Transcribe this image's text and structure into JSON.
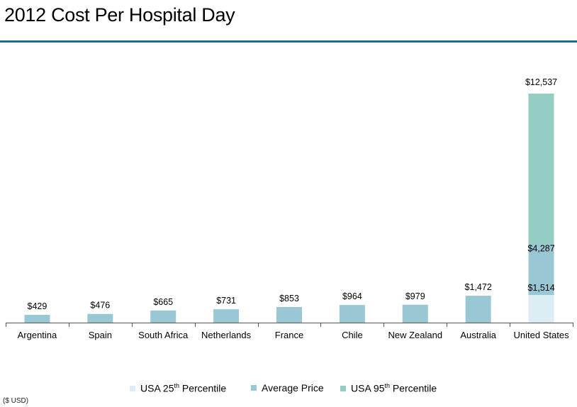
{
  "title": "2012 Cost Per Hospital Day",
  "note": "($ USD)",
  "colors": {
    "rule": "#1d6e8f",
    "average": "#99c7d4",
    "p25": "#dceef4",
    "p95": "#94cdc1",
    "axis": "#555555"
  },
  "legend": [
    {
      "pre": "USA 25",
      "sup": "th",
      "post": " Percentile",
      "color": "#dceef4"
    },
    {
      "pre": "Average Price",
      "sup": "",
      "post": "",
      "color": "#99c7d4"
    },
    {
      "pre": "USA  95",
      "sup": "th",
      "post": " Percentile",
      "color": "#94cdc1"
    }
  ],
  "chart_data": {
    "type": "bar",
    "title": "2012 Cost Per Hospital Day",
    "categories": [
      "Argentina",
      "Spain",
      "South Africa",
      "Netherlands",
      "France",
      "Chile",
      "New Zealand",
      "Australia",
      "United States"
    ],
    "values": [
      429,
      476,
      665,
      731,
      853,
      964,
      979,
      1472,
      4287
    ],
    "labels": [
      "$429",
      "$476",
      "$665",
      "$731",
      "$853",
      "$964",
      "$979",
      "$1,472",
      "$4,287"
    ],
    "us_breakdown": {
      "p25": 1514,
      "p25_label": "$1,514",
      "average": 4287,
      "average_label": "$4,287",
      "p95": 12537,
      "p95_label": "$12,537"
    },
    "ylim": [
      0,
      13500
    ],
    "grid": false,
    "legend_position": "bottom"
  }
}
